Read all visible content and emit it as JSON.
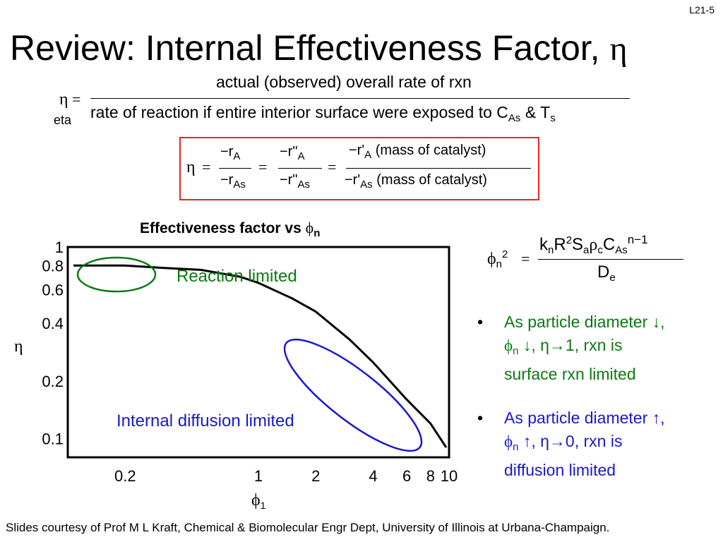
{
  "slide_number": "L21-5",
  "title": {
    "text": "Review: Internal Effectiveness Factor,",
    "symbol": "η"
  },
  "definition": {
    "lhs_symbol": "η",
    "equals": "=",
    "lhs_label": "eta",
    "numerator": "actual (observed) overall rate of rxn",
    "denominator_main": "rate of reaction if entire interior surface were exposed to C",
    "denominator_sub": "As",
    "denominator_amp": "& T",
    "denominator_sub2": "s"
  },
  "boxed_equation": {
    "eta": "η",
    "eq": "=",
    "t1_num": "−r",
    "t1_num_sub": "A",
    "t1_den": "−r",
    "t1_den_sub": "As",
    "t2_num": "−r\"",
    "t2_num_sub": "A",
    "t2_den": "−r\"",
    "t2_den_sub": "As",
    "t3_num": "−r'",
    "t3_num_sub": "A",
    "t3_num_paren": "(mass of catalyst)",
    "t3_den": "−r'",
    "t3_den_sub": "As",
    "t3_den_paren": "(mass of catalyst)"
  },
  "chart_data": {
    "type": "line",
    "title": "Effectiveness factor vs",
    "title_symbol": "ϕ",
    "title_sub": "n",
    "xlabel": "ϕ",
    "xlabel_sub": "1",
    "ylabel": "η",
    "x_ticks": [
      {
        "label": "0.2",
        "value": 0.2
      },
      {
        "label": "1",
        "value": 1
      },
      {
        "label": "2",
        "value": 2
      },
      {
        "label": "4",
        "value": 4
      },
      {
        "label": "6",
        "value": 6
      },
      {
        "label": "8",
        "value": 8
      },
      {
        "label": "10",
        "value": 10
      }
    ],
    "y_ticks": [
      {
        "label": "1",
        "value": 1
      },
      {
        "label": "0.8",
        "value": 0.8
      },
      {
        "label": "0.6",
        "value": 0.6
      },
      {
        "label": "0.4",
        "value": 0.4
      },
      {
        "label": "0.2",
        "value": 0.2
      },
      {
        "label": "0.1",
        "value": 0.1
      }
    ],
    "x_range": [
      0.1,
      10
    ],
    "y_range": [
      0.08,
      1
    ],
    "series": [
      {
        "name": "η",
        "x": [
          0.1,
          0.2,
          0.3,
          0.5,
          0.8,
          1,
          1.5,
          2,
          3,
          4,
          6,
          8,
          10
        ],
        "y": [
          0.8,
          0.8,
          0.78,
          0.76,
          0.7,
          0.65,
          0.54,
          0.46,
          0.33,
          0.25,
          0.16,
          0.12,
          0.09
        ]
      }
    ],
    "annotations": [
      {
        "text": "Reaction limited",
        "color": "#0a7a12"
      },
      {
        "text": "Internal diffusion limited",
        "color": "#1818d0"
      }
    ]
  },
  "phi_definition": {
    "lhs": "ϕ",
    "lhs_sub": "n",
    "lhs_sup": "2",
    "equals": "=",
    "num_k": "k",
    "num_k_sub": "n",
    "num_R": "R",
    "num_R_sup": "2",
    "num_S": "S",
    "num_S_sub": "a",
    "num_rho": "ρ",
    "num_rho_sub": "c",
    "num_C": "C",
    "num_C_sub": "As",
    "num_C_sup": "n−1",
    "den": "D",
    "den_sub": "e"
  },
  "bullets": [
    {
      "marker": "•",
      "line1": "As particle diameter ↓,",
      "phi": "ϕ",
      "phi_sub": "n",
      "line2_rest": " ↓, η→1, rxn is",
      "line3": "surface rxn limited",
      "color": "#0a7a12"
    },
    {
      "marker": "•",
      "line1": "As particle diameter ↑,",
      "phi": "ϕ",
      "phi_sub": "n",
      "line2_rest": " ↑, η→0, rxn is",
      "line3": "diffusion limited",
      "color": "#1818d0"
    }
  ],
  "footer": "Slides courtesy of Prof M L Kraft, Chemical & Biomolecular Engr Dept, University of Illinois at Urbana-Champaign."
}
